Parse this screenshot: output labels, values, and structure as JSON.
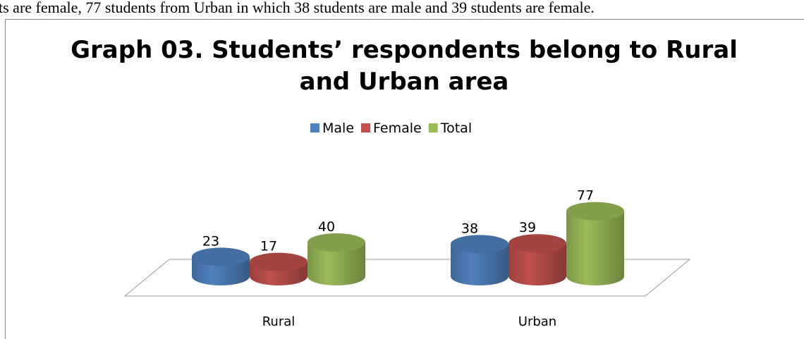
{
  "document": {
    "line": "ts are female, 77 students from Urban  in which 38 students are male and 39 students are female."
  },
  "chart_data": {
    "type": "bar3d",
    "title": "Graph 03. Students’ respondents belong to Rural and Urban area",
    "categories": [
      "Rural",
      "Urban"
    ],
    "series": [
      {
        "name": "Male",
        "color": "#4f81bd",
        "values": [
          23,
          38
        ]
      },
      {
        "name": "Female",
        "color": "#c0504d",
        "values": [
          17,
          39
        ]
      },
      {
        "name": "Total",
        "color": "#9bbb59",
        "values": [
          40,
          77
        ]
      }
    ],
    "legend": "top"
  }
}
